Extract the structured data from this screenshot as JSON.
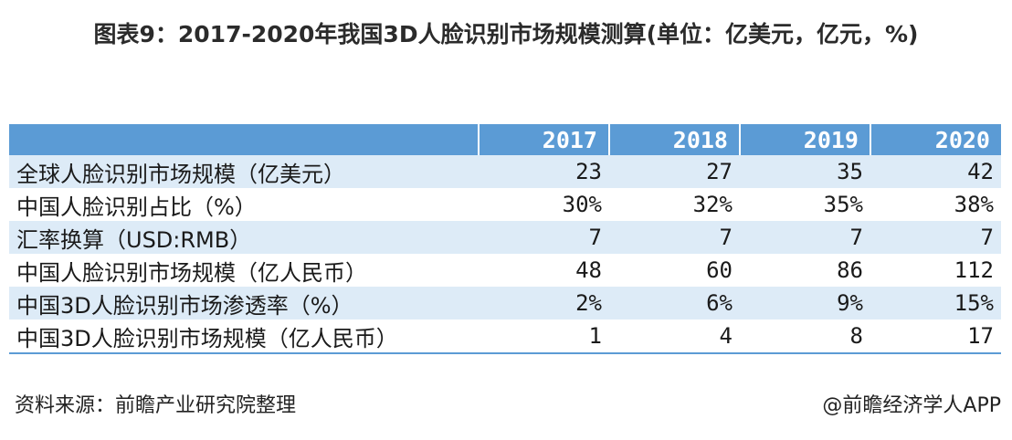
{
  "title": "图表9：2017-2020年我国3D人脸识别市场规模测算(单位：亿美元，亿元，%)",
  "table": {
    "header": [
      "",
      "2017",
      "2018",
      "2019",
      "2020"
    ],
    "rows": [
      {
        "label": "全球人脸识别市场规模（亿美元）",
        "values": [
          "23",
          "27",
          "35",
          "42"
        ]
      },
      {
        "label": "中国人脸识别占比（%）",
        "values": [
          "30%",
          "32%",
          "35%",
          "38%"
        ]
      },
      {
        "label": "汇率换算（USD:RMB）",
        "values": [
          "7",
          "7",
          "7",
          "7"
        ]
      },
      {
        "label": "中国人脸识别市场规模（亿人民币）",
        "values": [
          "48",
          "60",
          "86",
          "112"
        ]
      },
      {
        "label": "中国3D人脸识别市场渗透率（%）",
        "values": [
          "2%",
          "6%",
          "9%",
          "15%"
        ]
      },
      {
        "label": "中国3D人脸识别市场规模（亿人民币）",
        "values": [
          "1",
          "4",
          "8",
          "17"
        ]
      }
    ]
  },
  "footer": {
    "source": "资料来源：前瞻产业研究院整理",
    "brand": "@前瞻经济学人APP"
  },
  "colors": {
    "header_bg": "#5b9bd5",
    "band_bg": "#ddebf7"
  }
}
